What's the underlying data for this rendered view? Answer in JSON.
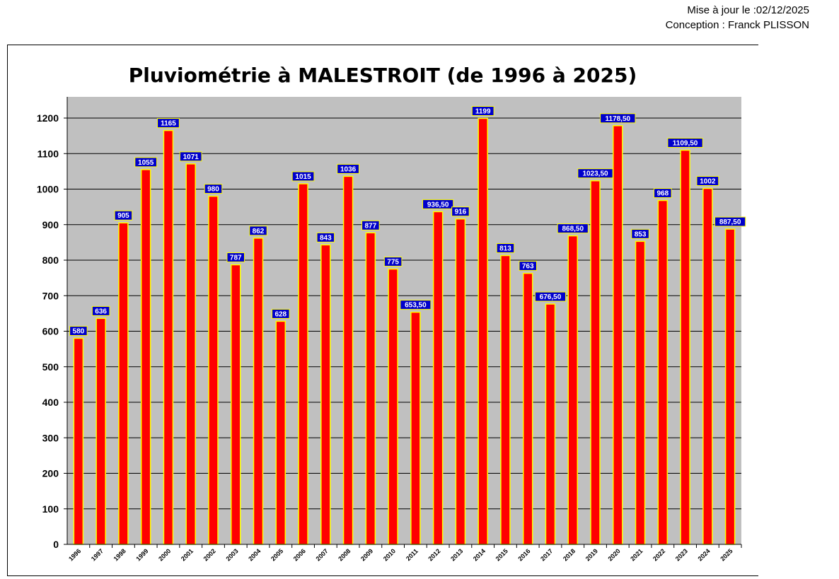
{
  "header": {
    "updated": "Mise à jour le :02/12/2025",
    "author": "Conception : Franck PLISSON"
  },
  "colors": {
    "plot_background": "#c0c0c0",
    "bar_fill": "#ff0000",
    "bar_border": "#ffff00",
    "label_background": "#0000cc",
    "label_border": "#ffff00",
    "label_text": "#ffffff"
  },
  "chart_data": {
    "type": "bar",
    "title": "Pluviométrie à MALESTROIT (de 1996 à 2025)",
    "xlabel": "",
    "ylabel": "",
    "ylim": [
      0,
      1200
    ],
    "yticks": [
      0,
      100,
      200,
      300,
      400,
      500,
      600,
      700,
      800,
      900,
      1000,
      1100,
      1200
    ],
    "grid": true,
    "categories": [
      "1996",
      "1997",
      "1998",
      "1999",
      "2000",
      "2001",
      "2002",
      "2003",
      "2004",
      "2005",
      "2006",
      "2007",
      "2008",
      "2009",
      "2010",
      "2011",
      "2012",
      "2013",
      "2014",
      "2015",
      "2016",
      "2017",
      "2018",
      "2019",
      "2020",
      "2021",
      "2022",
      "2023",
      "2024",
      "2025"
    ],
    "values": [
      580,
      636,
      905,
      1055,
      1165,
      1071,
      980,
      787,
      862,
      628,
      1015,
      843,
      1036,
      877,
      775,
      653.5,
      936.5,
      916,
      1199,
      813,
      763,
      676.5,
      868.5,
      1023.5,
      1178.5,
      853,
      968,
      1109.5,
      1002,
      887.5
    ],
    "data_labels": [
      "580",
      "636",
      "905",
      "1055",
      "1165",
      "1071",
      "980",
      "787",
      "862",
      "628",
      "1015",
      "843",
      "1036",
      "877",
      "775",
      "653,50",
      "936,50",
      "916",
      "1199",
      "813",
      "763",
      "676,50",
      "868,50",
      "1023,50",
      "1178,50",
      "853",
      "968",
      "1109,50",
      "1002",
      "887,50"
    ]
  }
}
